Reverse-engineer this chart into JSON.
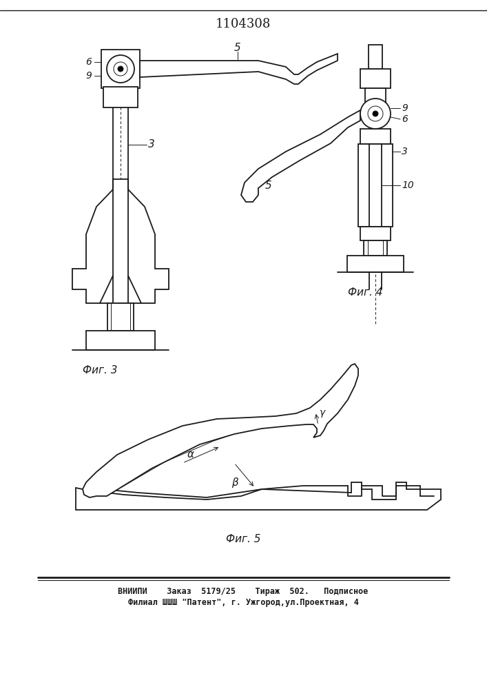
{
  "title_number": "1104308",
  "fig3_label": "Фиг. 3",
  "fig4_label": "Фиг. 4",
  "fig5_label": "Фиг. 5",
  "footer_line1": "ВНИИПИ    Заказ  5179/25    Тираж  502.   Подписное",
  "footer_line2": "Филиал ШШШ \"Патент\", г. Ужгород,ул.Проектная, 4",
  "bg_color": "#ffffff",
  "line_color": "#1a1a1a"
}
